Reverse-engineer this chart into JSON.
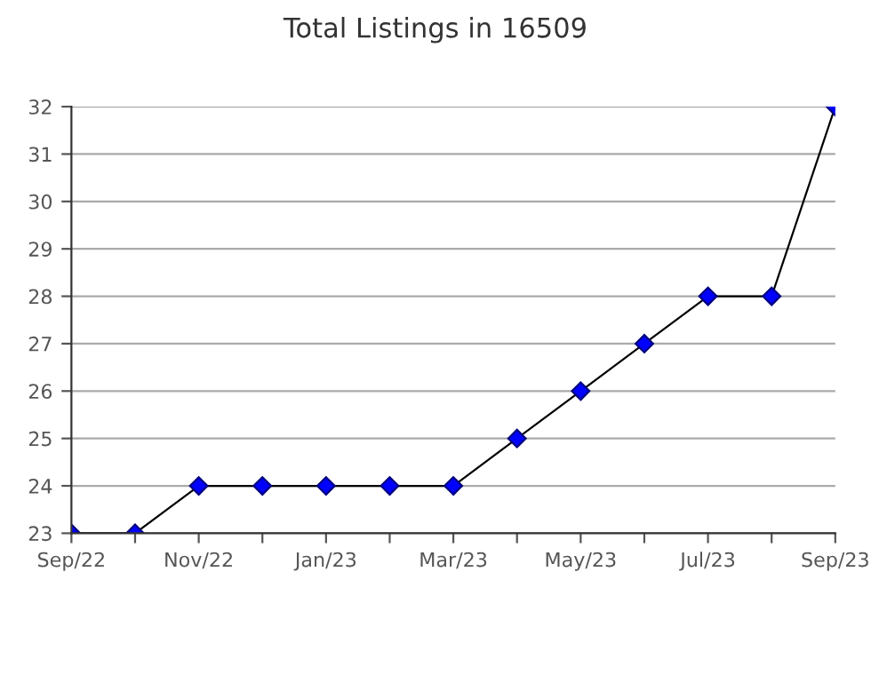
{
  "chart_data": {
    "type": "line",
    "title": "Total Listings in 16509",
    "categories": [
      "Sep/22",
      null,
      "Nov/22",
      null,
      "Jan/23",
      null,
      "Mar/23",
      null,
      "May/23",
      null,
      "Jul/23",
      null,
      "Sep/23"
    ],
    "series": [
      {
        "color": "#0000ff",
        "values": [
          23,
          23,
          24,
          24,
          24,
          24,
          24,
          25,
          26,
          27,
          28,
          28,
          32
        ]
      }
    ],
    "ylim": [
      23,
      32
    ],
    "yticks": [
      23,
      24,
      25,
      26,
      27,
      28,
      29,
      30,
      31,
      32
    ],
    "grid": "y",
    "marker": "diamond",
    "line_style": "solid",
    "legend": false
  }
}
